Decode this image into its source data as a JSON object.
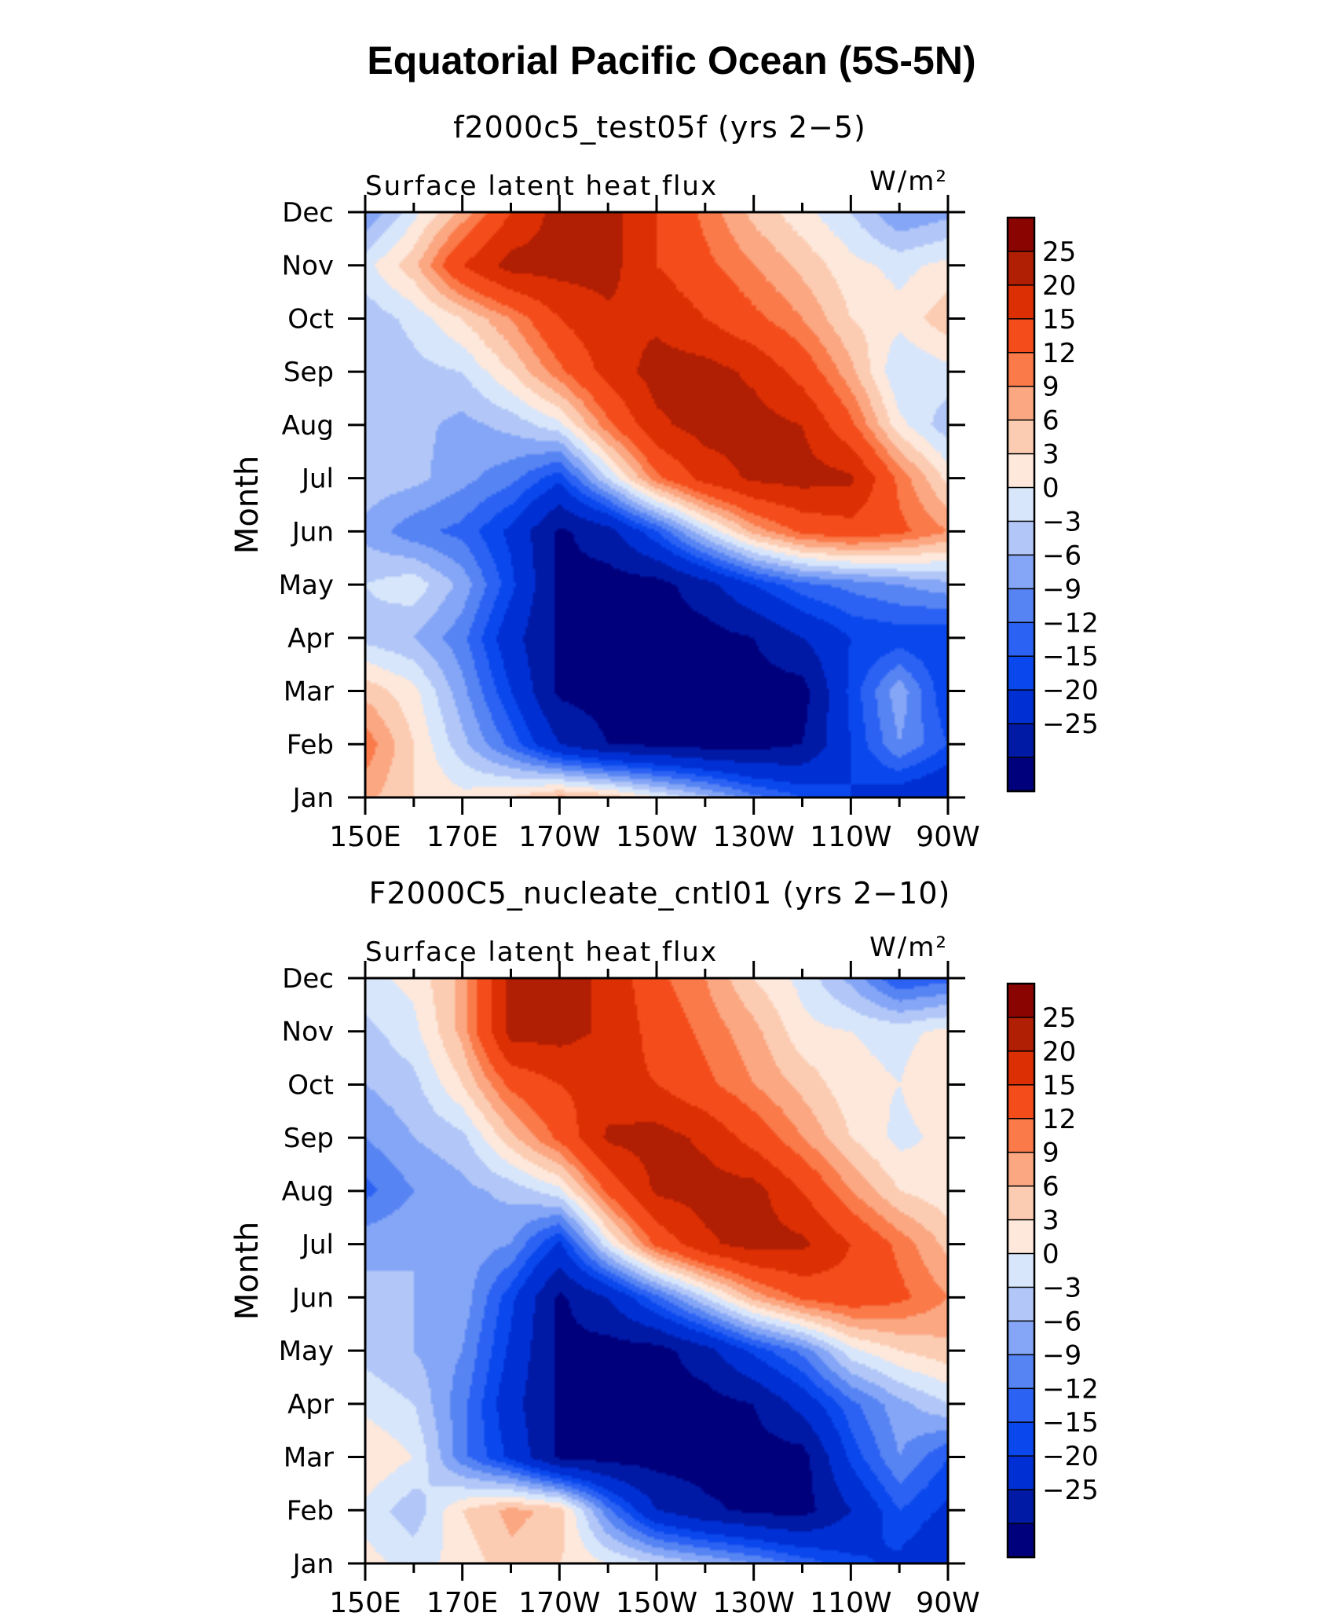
{
  "title": "Equatorial Pacific Ocean (5S-5N)",
  "colorbar": {
    "levels": [
      -25,
      -20,
      -15,
      -12,
      -9,
      -6,
      -3,
      0,
      3,
      6,
      9,
      12,
      15,
      20,
      25
    ],
    "level_labels": [
      "25",
      "20",
      "15",
      "12",
      "9",
      "6",
      "3",
      "0",
      "−3",
      "−6",
      "−9",
      "−12",
      "−15",
      "−20",
      "−25"
    ],
    "colors": [
      "#00007c",
      "#001aa6",
      "#0030d4",
      "#0a48ee",
      "#2b62f3",
      "#5784f3",
      "#85a6f6",
      "#b2c7f8",
      "#d8e6fb",
      "#fde8db",
      "#fcccb2",
      "#fba782",
      "#fa7a4a",
      "#f44d1b",
      "#dd2f04",
      "#b01e03",
      "#8a0502"
    ]
  },
  "chart_data": [
    {
      "type": "heatmap",
      "title": "f2000c5_test05f (yrs 2−5)",
      "subtitle_left": "Surface latent heat flux",
      "units": "W/m²",
      "ylabel": "Month",
      "x_ticks": [
        "150E",
        "170E",
        "170W",
        "150W",
        "130W",
        "110W",
        "90W"
      ],
      "y_ticks": [
        "Jan",
        "Feb",
        "Mar",
        "Apr",
        "May",
        "Jun",
        "Jul",
        "Aug",
        "Sep",
        "Oct",
        "Nov",
        "Dec"
      ],
      "x_range": [
        150,
        270
      ],
      "x": [
        150,
        160,
        170,
        180,
        190,
        200,
        210,
        220,
        230,
        240,
        250,
        260,
        270
      ],
      "y": [
        "Jan",
        "Feb",
        "Mar",
        "Apr",
        "May",
        "Jun",
        "Jul",
        "Aug",
        "Sep",
        "Oct",
        "Nov",
        "Dec"
      ],
      "z": [
        [
          10,
          6,
          4,
          6,
          10,
          8,
          3,
          -2,
          -8,
          -12,
          -15,
          -18,
          -20
        ],
        [
          14,
          6,
          -2,
          -10,
          -20,
          -25,
          -26,
          -27,
          -27,
          -25,
          -15,
          -6,
          -12
        ],
        [
          8,
          4,
          -5,
          -15,
          -26,
          -27,
          -27,
          -27,
          -27,
          -27,
          -14,
          -4,
          -15
        ],
        [
          -1,
          -3,
          -8,
          -18,
          -26,
          -27,
          -27,
          -27,
          -25,
          -20,
          -15,
          -14,
          -15
        ],
        [
          0,
          2,
          -4,
          -14,
          -26,
          -27,
          -27,
          -22,
          -15,
          -10,
          -8,
          -6,
          -4
        ],
        [
          -4,
          -8,
          -10,
          -16,
          -26,
          -22,
          -12,
          0,
          10,
          16,
          18,
          16,
          12
        ],
        [
          -1,
          -2,
          -5,
          -8,
          -14,
          0,
          14,
          22,
          26,
          27,
          26,
          14,
          5
        ],
        [
          -2,
          -2,
          -4,
          -2,
          2,
          14,
          24,
          27,
          27,
          25,
          16,
          4,
          -2
        ],
        [
          -3,
          -1,
          0,
          6,
          14,
          22,
          27,
          27,
          24,
          18,
          10,
          0,
          2
        ],
        [
          -2,
          1,
          6,
          12,
          20,
          24,
          24,
          20,
          16,
          12,
          6,
          4,
          8
        ],
        [
          2,
          8,
          20,
          27,
          27,
          27,
          20,
          16,
          12,
          8,
          4,
          2,
          4
        ],
        [
          -6,
          2,
          10,
          20,
          27,
          27,
          20,
          14,
          8,
          4,
          0,
          -6,
          -4
        ]
      ]
    },
    {
      "type": "heatmap",
      "title": "F2000C5_nucleate_cntl01 (yrs 2−10)",
      "subtitle_left": "Surface latent heat flux",
      "units": "W/m²",
      "ylabel": "Month",
      "x_ticks": [
        "150E",
        "170E",
        "170W",
        "150W",
        "130W",
        "110W",
        "90W"
      ],
      "y_ticks": [
        "Jan",
        "Feb",
        "Mar",
        "Apr",
        "May",
        "Jun",
        "Jul",
        "Aug",
        "Sep",
        "Oct",
        "Nov",
        "Dec"
      ],
      "x_range": [
        150,
        270
      ],
      "x": [
        150,
        160,
        170,
        180,
        190,
        200,
        210,
        220,
        230,
        240,
        250,
        260,
        270
      ],
      "y": [
        "Jan",
        "Feb",
        "Mar",
        "Apr",
        "May",
        "Jun",
        "Jul",
        "Aug",
        "Sep",
        "Oct",
        "Nov",
        "Dec"
      ],
      "z": [
        [
          4,
          2,
          4,
          8,
          6,
          3,
          0,
          -3,
          -6,
          -10,
          -14,
          -16,
          -20
        ],
        [
          2,
          -2,
          6,
          10,
          8,
          -8,
          -20,
          -24,
          -26,
          -27,
          -20,
          -12,
          -16
        ],
        [
          6,
          3,
          -8,
          -16,
          -26,
          -27,
          -27,
          -27,
          -27,
          -27,
          -14,
          -6,
          -12
        ],
        [
          2,
          0,
          -8,
          -18,
          -26,
          -27,
          -27,
          -27,
          -25,
          -18,
          -10,
          -4,
          0
        ],
        [
          -1,
          -3,
          -6,
          -16,
          -26,
          -27,
          -27,
          -22,
          -14,
          -8,
          2,
          6,
          8
        ],
        [
          -2,
          -3,
          -4,
          -14,
          -26,
          -20,
          -10,
          0,
          10,
          16,
          18,
          16,
          12
        ],
        [
          -4,
          -3,
          -4,
          -6,
          -16,
          2,
          16,
          24,
          27,
          26,
          20,
          14,
          8
        ],
        [
          -10,
          -6,
          -4,
          -2,
          2,
          16,
          26,
          27,
          27,
          20,
          12,
          6,
          4
        ],
        [
          -6,
          -3,
          -1,
          8,
          16,
          26,
          27,
          24,
          18,
          12,
          6,
          2,
          4
        ],
        [
          -3,
          -1,
          6,
          16,
          20,
          22,
          20,
          16,
          12,
          8,
          4,
          3,
          6
        ],
        [
          -1,
          2,
          10,
          27,
          27,
          24,
          18,
          14,
          10,
          4,
          3,
          2,
          4
        ],
        [
          2,
          4,
          10,
          27,
          27,
          24,
          16,
          12,
          6,
          2,
          -4,
          -12,
          -10
        ]
      ]
    }
  ]
}
